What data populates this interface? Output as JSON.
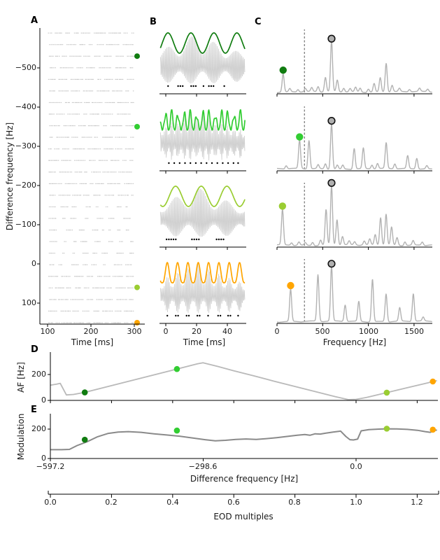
{
  "panel_letters": {
    "a": "A",
    "b": "B",
    "c": "C",
    "d": "D",
    "e": "E"
  },
  "colors": {
    "darkgreen": "#107c10",
    "limegreen": "#32cd32",
    "yellowgreen": "#9acd32",
    "orange": "#ffa500",
    "raster": "#c6c6c6",
    "carrier": "#d0d0d0",
    "spectrum": "#b2b2b2",
    "d_line": "#b9b9b9",
    "e_line": "#8a8a8a",
    "circle_fill": "#b0b0b0",
    "axis": "#000000",
    "spike_dot": "#000000"
  },
  "chart_data": [
    {
      "id": "A",
      "type": "scatter",
      "panel": "A",
      "xlabel": "Time [ms]",
      "ylabel": "Difference frequency [Hz]",
      "xtick_labels": [
        "100",
        "200",
        "300"
      ],
      "xtick_values": [
        100,
        200,
        300
      ],
      "ytick_labels": [
        "−500",
        "−400",
        "−300",
        "−200",
        "−100",
        "0",
        "100"
      ],
      "ytick_values": [
        -500,
        -400,
        -300,
        -200,
        -100,
        0,
        100
      ],
      "ylim": [
        -602,
        158
      ],
      "y_inverted": true,
      "xlim": [
        82,
        332
      ],
      "raster": {
        "n_rows": 26,
        "df_start": -589,
        "df_end": 150,
        "t_range_ms": [
          101,
          298
        ],
        "seed": 7
      },
      "markers": [
        {
          "df": -530,
          "color": "darkgreen"
        },
        {
          "df": -350,
          "color": "limegreen"
        },
        {
          "df": 60,
          "color": "yellowgreen"
        },
        {
          "df": 150,
          "color": "orange"
        }
      ]
    },
    {
      "id": "B",
      "type": "line",
      "panel": "B",
      "xlabel": "Time [ms]",
      "xtick_labels": [
        "0",
        "20",
        "40"
      ],
      "xtick_values": [
        0,
        20,
        40
      ],
      "carrier_hz": 597,
      "rows": [
        {
          "af_hz": 67,
          "color": "darkgreen",
          "env_pow": 1.0,
          "phase": -0.6,
          "spike_times_ms": [
            1.5,
            8,
            9.5,
            11,
            16.5,
            18,
            19.5,
            24.5,
            28,
            29.5,
            31,
            38
          ]
        },
        {
          "af_hz": 247,
          "color": "limegreen",
          "env_pow": 1.0,
          "phase": 0.3,
          "jitter": true,
          "spike_times_ms": [
            2,
            5.5,
            9,
            12.5,
            16,
            19.5,
            23,
            26.5,
            30,
            33.5,
            37,
            40.5,
            44,
            47
          ]
        },
        {
          "af_hz": 60,
          "color": "yellowgreen",
          "env_pow": 1.0,
          "phase": -2.4,
          "spike_times_ms": [
            0.5,
            2,
            3.5,
            5,
            6.5,
            17,
            18.5,
            20,
            21.5,
            33,
            34.5,
            36,
            37.5
          ]
        },
        {
          "af_hz": 149,
          "color": "orange",
          "env_pow": 1.6,
          "phase": -0.9,
          "spike_times_ms": [
            1,
            6.5,
            8,
            13.5,
            15,
            20.5,
            22,
            27.5,
            34,
            35.5,
            40.5,
            42,
            47
          ]
        }
      ]
    },
    {
      "id": "C",
      "type": "line",
      "panel": "C",
      "xlabel": "Frequency [Hz]",
      "xtick_labels": [
        "0",
        "500",
        "1000",
        "1500"
      ],
      "xtick_values": [
        0,
        500,
        1000,
        1500
      ],
      "xlim": [
        0,
        1700
      ],
      "dashed_vline_hz": 300,
      "rows": [
        {
          "dot_hz": 67,
          "dot_color": "darkgreen",
          "circle_hz": 597,
          "peaks": [
            [
              67,
              0.28
            ],
            [
              140,
              0.05
            ],
            [
              230,
              0.04
            ],
            [
              310,
              0.05
            ],
            [
              380,
              0.06
            ],
            [
              450,
              0.08
            ],
            [
              530,
              0.22
            ],
            [
              597,
              0.78
            ],
            [
              660,
              0.18
            ],
            [
              730,
              0.06
            ],
            [
              800,
              0.05
            ],
            [
              860,
              0.07
            ],
            [
              910,
              0.06
            ],
            [
              1000,
              0.05
            ],
            [
              1063,
              0.13
            ],
            [
              1130,
              0.22
            ],
            [
              1195,
              0.45
            ],
            [
              1260,
              0.1
            ],
            [
              1340,
              0.05
            ],
            [
              1450,
              0.04
            ],
            [
              1560,
              0.05
            ],
            [
              1650,
              0.04
            ]
          ]
        },
        {
          "dot_hz": 247,
          "dot_color": "limegreen",
          "circle_hz": 597,
          "peaks": [
            [
              100,
              0.05
            ],
            [
              247,
              0.44
            ],
            [
              350,
              0.44
            ],
            [
              450,
              0.06
            ],
            [
              530,
              0.08
            ],
            [
              597,
              0.7
            ],
            [
              660,
              0.06
            ],
            [
              720,
              0.06
            ],
            [
              845,
              0.32
            ],
            [
              945,
              0.32
            ],
            [
              1040,
              0.06
            ],
            [
              1100,
              0.08
            ],
            [
              1195,
              0.4
            ],
            [
              1290,
              0.08
            ],
            [
              1430,
              0.2
            ],
            [
              1530,
              0.17
            ],
            [
              1640,
              0.05
            ]
          ]
        },
        {
          "dot_hz": 60,
          "dot_color": "yellowgreen",
          "circle_hz": 597,
          "peaks": [
            [
              60,
              0.55
            ],
            [
              160,
              0.04
            ],
            [
              240,
              0.05
            ],
            [
              310,
              0.04
            ],
            [
              390,
              0.05
            ],
            [
              477,
              0.08
            ],
            [
              537,
              0.55
            ],
            [
              597,
              0.92
            ],
            [
              657,
              0.4
            ],
            [
              717,
              0.13
            ],
            [
              790,
              0.06
            ],
            [
              850,
              0.05
            ],
            [
              955,
              0.06
            ],
            [
              1015,
              0.09
            ],
            [
              1075,
              0.16
            ],
            [
              1134,
              0.43
            ],
            [
              1194,
              0.48
            ],
            [
              1254,
              0.28
            ],
            [
              1314,
              0.12
            ],
            [
              1400,
              0.06
            ],
            [
              1490,
              0.07
            ],
            [
              1590,
              0.05
            ]
          ]
        },
        {
          "dot_hz": 149,
          "dot_color": "orange",
          "circle_hz": 597,
          "peaks": [
            [
              149,
              0.5
            ],
            [
              448,
              0.72
            ],
            [
              597,
              0.85
            ],
            [
              746,
              0.26
            ],
            [
              895,
              0.31
            ],
            [
              1045,
              0.66
            ],
            [
              1194,
              0.43
            ],
            [
              1343,
              0.21
            ],
            [
              1492,
              0.43
            ],
            [
              1600,
              0.06
            ]
          ]
        }
      ]
    },
    {
      "id": "D",
      "type": "line",
      "panel": "D",
      "ylabel": "AF [Hz]",
      "ytick_labels": [
        "0",
        "200"
      ],
      "ytick_values": [
        0,
        200
      ],
      "x_df_lim": [
        -597.2,
        160
      ],
      "line": [
        [
          -597,
          118
        ],
        [
          -585,
          126
        ],
        [
          -578,
          132
        ],
        [
          -566,
          42
        ],
        [
          -552,
          46
        ],
        [
          -530,
          62
        ],
        [
          -500,
          92
        ],
        [
          -450,
          142
        ],
        [
          -400,
          192
        ],
        [
          -350,
          242
        ],
        [
          -310,
          282
        ],
        [
          -299,
          291
        ],
        [
          -270,
          262
        ],
        [
          -240,
          230
        ],
        [
          -200,
          190
        ],
        [
          -160,
          148
        ],
        [
          -120,
          108
        ],
        [
          -80,
          68
        ],
        [
          -40,
          28
        ],
        [
          -15,
          6
        ],
        [
          0,
          8
        ],
        [
          20,
          22
        ],
        [
          60,
          60
        ],
        [
          100,
          98
        ],
        [
          140,
          135
        ],
        [
          152,
          148
        ],
        [
          158,
          152
        ]
      ],
      "dots": [
        {
          "df": -530,
          "value": 62,
          "color": "darkgreen"
        },
        {
          "df": -350,
          "value": 242,
          "color": "limegreen"
        },
        {
          "df": 60,
          "value": 60,
          "color": "yellowgreen"
        },
        {
          "df": 150,
          "value": 146,
          "color": "orange"
        }
      ]
    },
    {
      "id": "E",
      "type": "line",
      "panel": "E",
      "ylabel": "Modulation",
      "xlabel": "Difference frequency [Hz]",
      "ytick_labels": [
        "0",
        "200"
      ],
      "ytick_values": [
        0,
        200
      ],
      "xtick_labels": [
        "−597.2",
        "−298.6",
        "0.0"
      ],
      "xtick_values": [
        -597.2,
        -298.6,
        0.0
      ],
      "x_df_lim": [
        -597.2,
        160
      ],
      "line": [
        [
          -597,
          60
        ],
        [
          -575,
          60
        ],
        [
          -560,
          62
        ],
        [
          -545,
          88
        ],
        [
          -525,
          115
        ],
        [
          -505,
          148
        ],
        [
          -485,
          170
        ],
        [
          -465,
          180
        ],
        [
          -445,
          183
        ],
        [
          -420,
          178
        ],
        [
          -395,
          168
        ],
        [
          -370,
          160
        ],
        [
          -345,
          152
        ],
        [
          -320,
          140
        ],
        [
          -295,
          128
        ],
        [
          -275,
          120
        ],
        [
          -255,
          124
        ],
        [
          -235,
          130
        ],
        [
          -215,
          133
        ],
        [
          -195,
          130
        ],
        [
          -175,
          135
        ],
        [
          -155,
          142
        ],
        [
          -135,
          150
        ],
        [
          -115,
          158
        ],
        [
          -100,
          163
        ],
        [
          -90,
          158
        ],
        [
          -80,
          168
        ],
        [
          -70,
          166
        ],
        [
          -60,
          172
        ],
        [
          -45,
          180
        ],
        [
          -30,
          186
        ],
        [
          -20,
          150
        ],
        [
          -12,
          128
        ],
        [
          -5,
          126
        ],
        [
          3,
          132
        ],
        [
          10,
          188
        ],
        [
          25,
          196
        ],
        [
          45,
          200
        ],
        [
          60,
          202
        ],
        [
          80,
          201
        ],
        [
          100,
          198
        ],
        [
          120,
          192
        ],
        [
          135,
          183
        ],
        [
          145,
          178
        ],
        [
          152,
          190
        ],
        [
          158,
          194
        ]
      ],
      "dots": [
        {
          "df": -530,
          "value": 128,
          "color": "darkgreen"
        },
        {
          "df": -350,
          "value": 190,
          "color": "limegreen"
        },
        {
          "df": 60,
          "value": 203,
          "color": "yellowgreen"
        },
        {
          "df": 150,
          "value": 196,
          "color": "orange"
        }
      ]
    },
    {
      "id": "EOD",
      "type": "axis",
      "panel": "",
      "xlabel": "EOD multiples",
      "xtick_labels": [
        "0.0",
        "0.2",
        "0.4",
        "0.6",
        "0.8",
        "1.0",
        "1.2"
      ],
      "xtick_values": [
        0.0,
        0.2,
        0.4,
        0.6,
        0.8,
        1.0,
        1.2
      ]
    }
  ]
}
